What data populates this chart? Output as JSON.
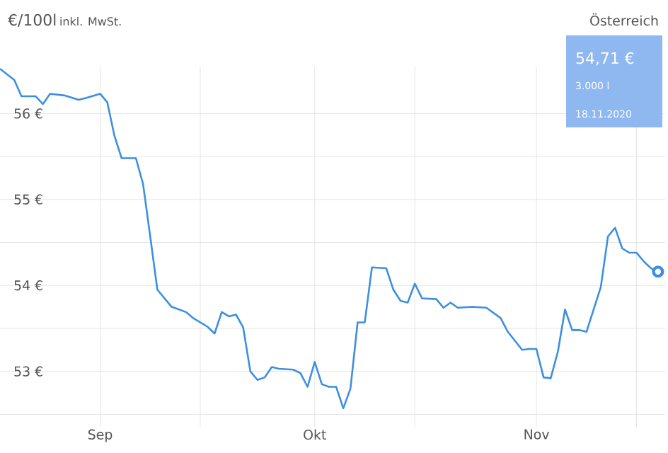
{
  "chart_data": {
    "type": "line",
    "title": "€/100l",
    "subtitle": "inkl. MwSt.",
    "annotations": [
      "Österreich",
      "54,71 €",
      "3.000 l",
      "18.11.2020"
    ],
    "x": [
      "2020-08-18",
      "2020-08-20",
      "2020-08-21",
      "2020-08-23",
      "2020-08-24",
      "2020-08-25",
      "2020-08-27",
      "2020-08-29",
      "2020-08-30",
      "2020-09-01",
      "2020-09-02",
      "2020-09-03",
      "2020-09-04",
      "2020-09-06",
      "2020-09-07",
      "2020-09-08",
      "2020-09-09",
      "2020-09-11",
      "2020-09-13",
      "2020-09-14",
      "2020-09-15",
      "2020-09-16",
      "2020-09-17",
      "2020-09-18",
      "2020-09-19",
      "2020-09-20",
      "2020-09-21",
      "2020-09-22",
      "2020-09-23",
      "2020-09-24",
      "2020-09-25",
      "2020-09-26",
      "2020-09-28",
      "2020-09-29",
      "2020-09-30",
      "2020-10-01",
      "2020-10-02",
      "2020-10-03",
      "2020-10-04",
      "2020-10-05",
      "2020-10-06",
      "2020-10-07",
      "2020-10-08",
      "2020-10-09",
      "2020-10-11",
      "2020-10-12",
      "2020-10-13",
      "2020-10-14",
      "2020-10-15",
      "2020-10-16",
      "2020-10-18",
      "2020-10-19",
      "2020-10-20",
      "2020-10-21",
      "2020-10-23",
      "2020-10-25",
      "2020-10-27",
      "2020-10-28",
      "2020-10-30",
      "2020-10-31",
      "2020-11-01",
      "2020-11-02",
      "2020-11-03",
      "2020-11-04",
      "2020-11-05",
      "2020-11-06",
      "2020-11-07",
      "2020-11-08",
      "2020-11-09",
      "2020-11-10",
      "2020-11-11",
      "2020-11-12",
      "2020-11-13",
      "2020-11-14",
      "2020-11-15",
      "2020-11-16",
      "2020-11-17",
      "2020-11-18"
    ],
    "series": [
      {
        "color": "#3d8fe0",
        "marker": "none",
        "values": [
          56.52,
          56.39,
          56.2,
          56.2,
          56.11,
          56.23,
          56.21,
          56.16,
          56.18,
          56.23,
          56.13,
          55.74,
          55.48,
          55.48,
          55.18,
          54.57,
          53.95,
          53.75,
          53.69,
          53.62,
          53.57,
          53.52,
          53.44,
          53.69,
          53.64,
          53.66,
          53.51,
          53.0,
          52.9,
          52.93,
          53.05,
          53.03,
          53.02,
          52.98,
          52.82,
          53.11,
          52.85,
          52.82,
          52.82,
          52.57,
          52.8,
          53.57,
          53.57,
          54.21,
          54.2,
          53.95,
          53.82,
          53.8,
          54.02,
          53.85,
          53.84,
          53.74,
          53.8,
          53.74,
          53.75,
          53.74,
          53.62,
          53.46,
          53.25,
          53.26,
          53.26,
          52.93,
          52.92,
          53.23,
          53.72,
          53.48,
          53.48,
          53.46,
          53.72,
          53.98,
          54.57,
          54.67,
          54.43,
          54.38,
          54.38,
          54.28,
          54.2,
          54.16
        ]
      },
      {
        "type": "scatter",
        "color": "#3d8fe0",
        "marker": "circle",
        "x": [
          "2020-11-18"
        ],
        "values": [
          54.16
        ]
      }
    ],
    "xlim": [
      "2020-08-18",
      "2020-11-19"
    ],
    "xticks": [
      {
        "value": "2020-09-01",
        "label": "Sep"
      },
      {
        "value": "2020-09-15",
        "label": null
      },
      {
        "value": "2020-10-01",
        "label": "Okt"
      },
      {
        "value": "2020-10-15",
        "label": null
      },
      {
        "value": "2020-11-01",
        "label": "Nov"
      },
      {
        "value": "2020-11-15",
        "label": null
      }
    ],
    "ylim": [
      52.35,
      56.55
    ],
    "yticks": [
      {
        "value": 52.5,
        "label": null
      },
      {
        "value": 53,
        "label": "53 €"
      },
      {
        "value": 53.5,
        "label": null
      },
      {
        "value": 54,
        "label": "54 €"
      },
      {
        "value": 54.5,
        "label": null
      },
      {
        "value": 55,
        "label": "55 €"
      },
      {
        "value": 55.5,
        "label": null
      },
      {
        "value": 56,
        "label": "56 €"
      }
    ],
    "grid": true
  }
}
